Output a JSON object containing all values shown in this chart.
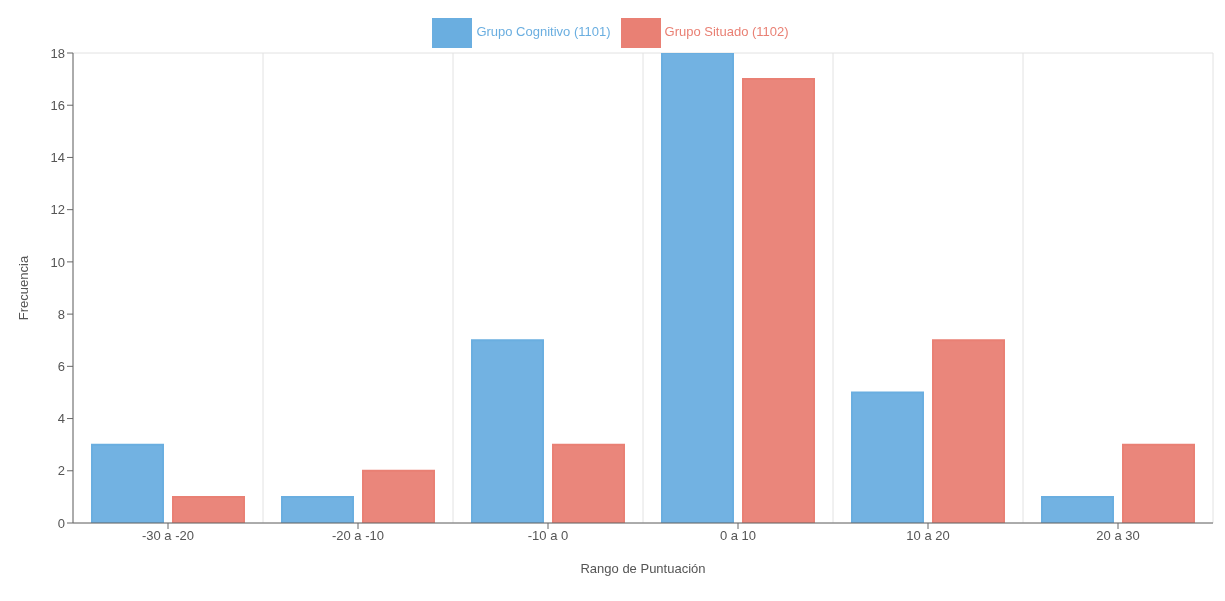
{
  "chart_data": {
    "type": "bar",
    "xlabel": "Rango de Puntuación",
    "ylabel": "Frecuencia",
    "categories": [
      "-30 a -20",
      "-20 a -10",
      "-10 a 0",
      "0 a 10",
      "10 a 20",
      "20 a 30"
    ],
    "series": [
      {
        "name": "Grupo Cognitivo (1101)",
        "color": "#6aaee0",
        "values": [
          3,
          1,
          7,
          18,
          5,
          1
        ]
      },
      {
        "name": "Grupo Situado (1102)",
        "color": "#e98074",
        "values": [
          1,
          2,
          3,
          17,
          7,
          3
        ]
      }
    ],
    "ylim": [
      0,
      18
    ],
    "yticks": [
      0,
      2,
      4,
      6,
      8,
      10,
      12,
      14,
      16,
      18
    ],
    "grid": true,
    "legend": "top"
  }
}
